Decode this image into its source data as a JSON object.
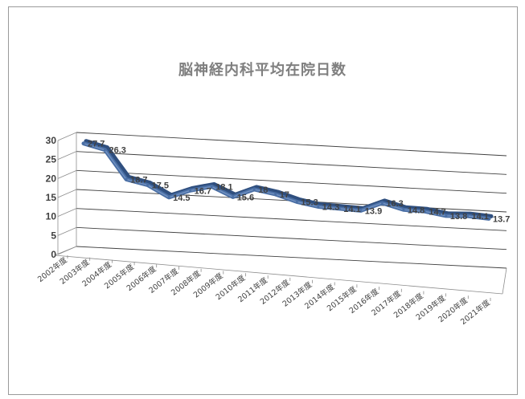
{
  "chart_data": {
    "type": "line",
    "title": "脳神経内科平均在院日数",
    "categories": [
      "2002年度",
      "2003年度",
      "2004年度",
      "2005年度",
      "2006年度",
      "2007年度",
      "2008年度",
      "2009年度",
      "2010年度",
      "2011年度",
      "2012年度",
      "2013年度",
      "2014年度",
      "2015年度",
      "2016年度",
      "2017年度",
      "2018年度",
      "2019年度",
      "2020年度",
      "2021年度"
    ],
    "values": [
      27.7,
      26.3,
      18.7,
      17.5,
      14.5,
      16.7,
      18.1,
      15.6,
      18,
      17,
      15.3,
      14.3,
      14.1,
      13.9,
      16.3,
      14.8,
      14.7,
      13.8,
      14.1,
      13.7
    ],
    "data_labels": [
      "27.7",
      "26.3",
      "18.7",
      "17.5",
      "14.5",
      "16.7",
      "18.1",
      "15.6",
      "18",
      "17",
      "15.3",
      "14.3",
      "14.1",
      "13.9",
      "16.3",
      "14.8",
      "14.7",
      "13.8",
      "14.1",
      "13.7"
    ],
    "y_ticks": [
      "0",
      "5",
      "10",
      "15",
      "20",
      "25",
      "30"
    ],
    "ylim": [
      0,
      30
    ],
    "grid": true,
    "legend": "none",
    "style": "3d-line",
    "series_color": "#4a6fa5",
    "xlabel": "",
    "ylabel": ""
  }
}
